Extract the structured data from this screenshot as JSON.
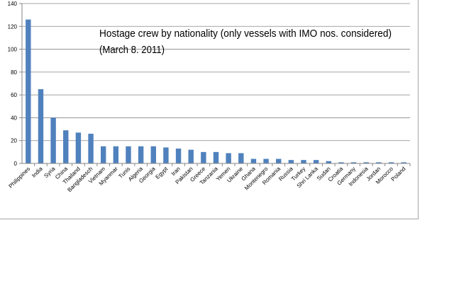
{
  "chart_data": {
    "type": "bar",
    "title_lines": [
      "Hostage crew by nationality (only vessels with IMO nos. considered)",
      "(March 8. 2011)"
    ],
    "xlabel": "",
    "ylabel": "",
    "ylim": [
      0,
      140
    ],
    "yticks": [
      0,
      20,
      40,
      60,
      80,
      100,
      120,
      140
    ],
    "grid": true,
    "legend": "none",
    "bar_color": "#4f81bd",
    "categories": [
      "Philippines",
      "India",
      "Syria",
      "China",
      "Thailand",
      "Bangladesch",
      "Vietnam",
      "Myanmar",
      "Tunis",
      "Algeria",
      "Georgia",
      "Egypt",
      "Iran",
      "Pakistan",
      "Greece",
      "Tanzania",
      "Yemen",
      "Ukraine",
      "Ghana",
      "Montenegro",
      "Romania",
      "Russia",
      "Turkey",
      "Shri Lanka",
      "Sudan",
      "Croatia",
      "Germany",
      "Indonesia",
      "Jordan",
      "Morocco",
      "Poland"
    ],
    "values": [
      126,
      65,
      40,
      29,
      27,
      26,
      15,
      15,
      15,
      15,
      15,
      14,
      13,
      12,
      10,
      10,
      9,
      9,
      4,
      4,
      4,
      3,
      3,
      3,
      2,
      1,
      1,
      1,
      1,
      1,
      1
    ]
  }
}
